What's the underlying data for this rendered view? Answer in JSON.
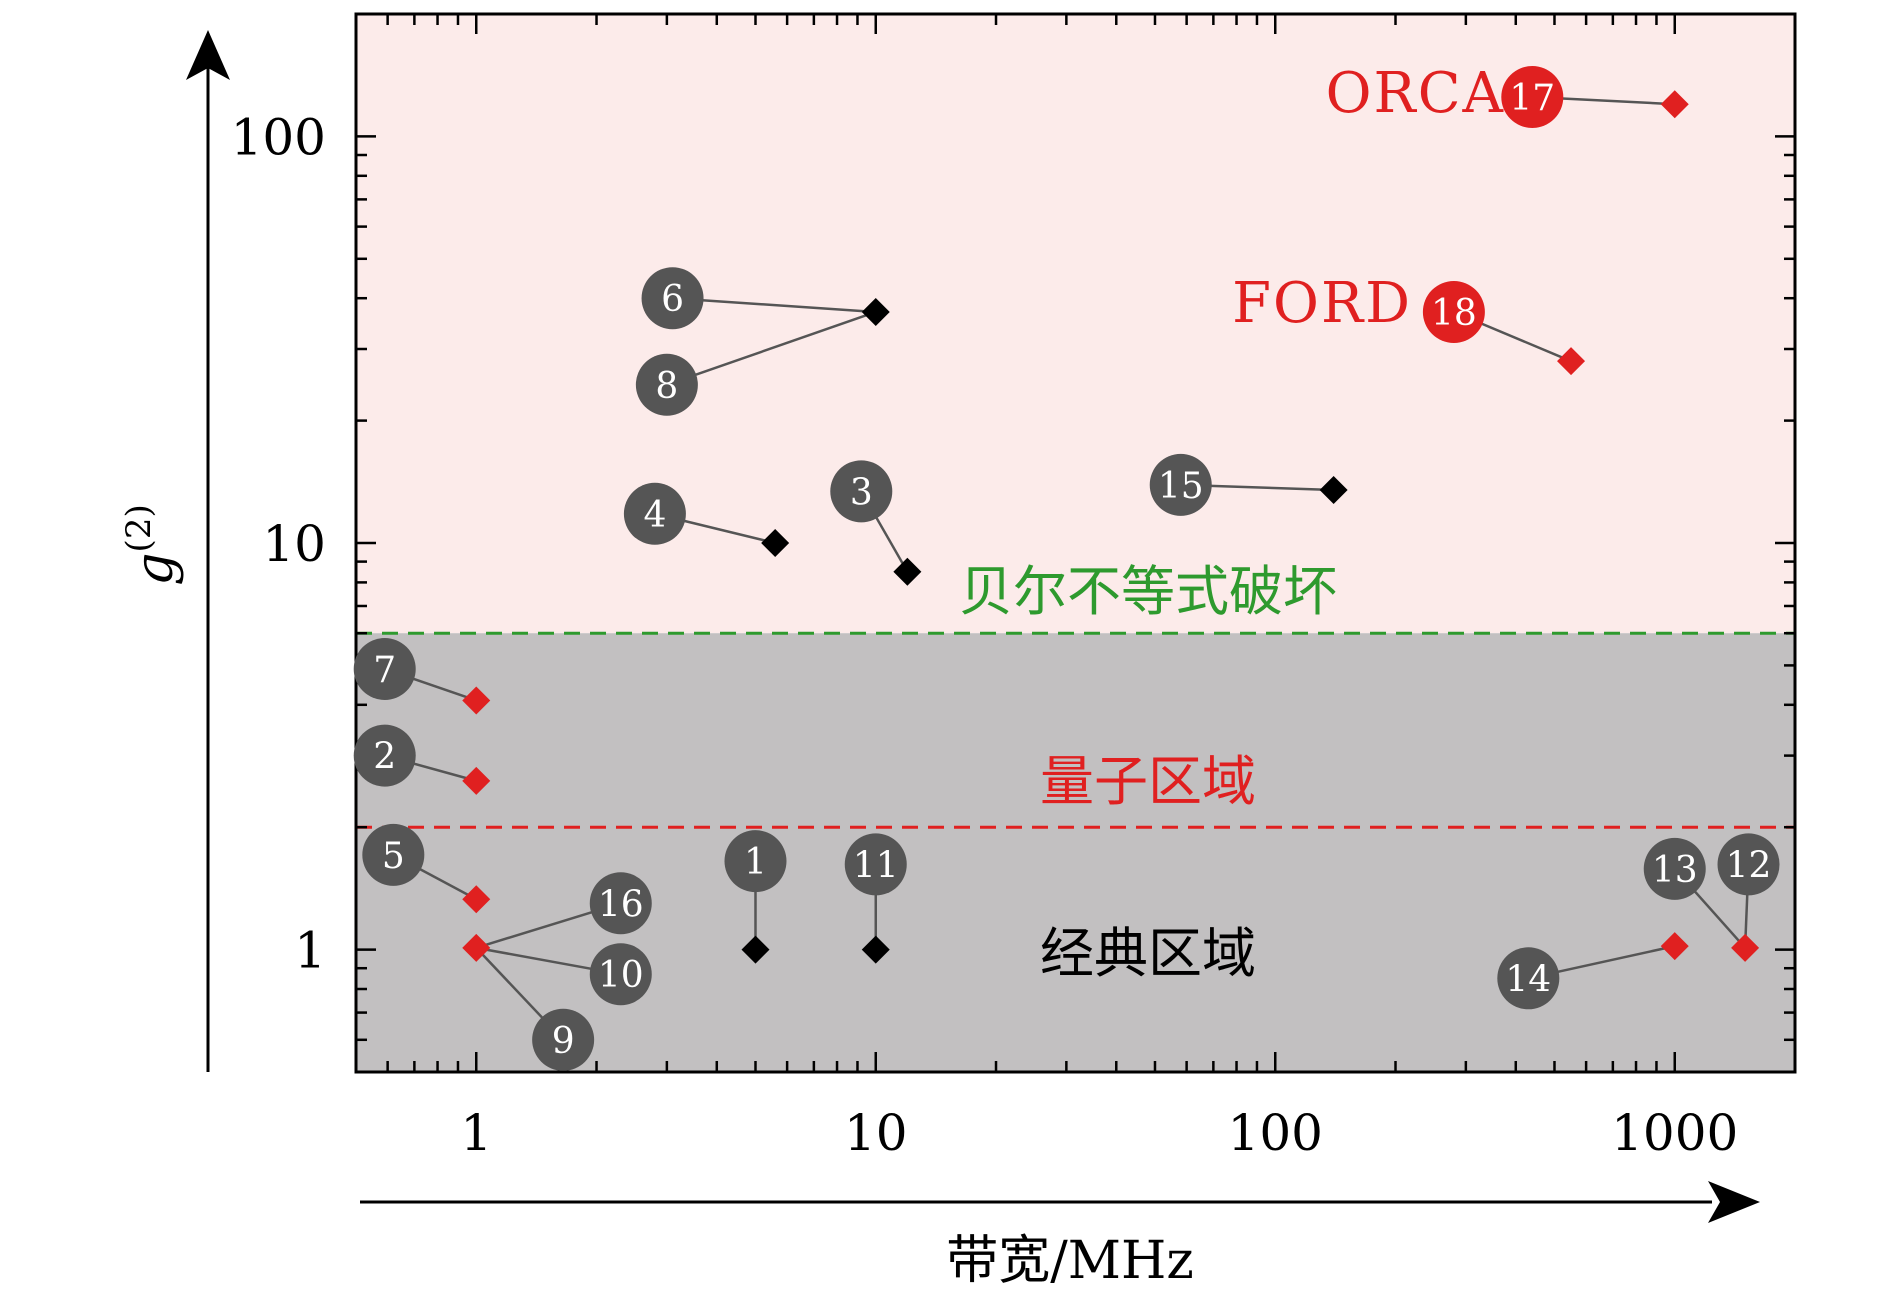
{
  "chart_data": {
    "type": "scatter",
    "xscale": "log",
    "yscale": "log",
    "xlim": [
      0.5,
      2000
    ],
    "ylim": [
      0.5,
      200
    ],
    "xlabel": "带宽/MHz",
    "ylabel_base": "g",
    "ylabel_sup": "(2)",
    "xticks": [
      {
        "value": 1,
        "label": "1"
      },
      {
        "value": 10,
        "label": "10"
      },
      {
        "value": 100,
        "label": "100"
      },
      {
        "value": 1000,
        "label": "1000"
      }
    ],
    "yticks": [
      {
        "value": 1,
        "label": "1"
      },
      {
        "value": 10,
        "label": "10"
      },
      {
        "value": 100,
        "label": "100"
      }
    ],
    "thresholds": [
      {
        "name": "bell",
        "value": 6,
        "color": "#2e9a2e",
        "label": "贝尔不等式破坏"
      },
      {
        "name": "quantum",
        "value": 2,
        "color": "#e02020",
        "label": "量子区域"
      }
    ],
    "regions": [
      {
        "name": "classical",
        "label": "经典区域",
        "color": "#000000"
      }
    ],
    "colors": {
      "upper_band": "#fcebea",
      "lower_band": "#c2c0c1",
      "black_marker": "#000000",
      "red_marker": "#e02020",
      "badge_gray": "#555555",
      "badge_red": "#e02020",
      "leader": "#555555"
    },
    "points": [
      {
        "id": "1",
        "x": 5,
        "y": 1.0,
        "color": "black",
        "badge_x": 5,
        "badge_y": 1.65
      },
      {
        "id": "2",
        "x": 1,
        "y": 2.6,
        "color": "red",
        "badge_x": 0.59,
        "badge_y": 3.0
      },
      {
        "id": "3",
        "x": 12,
        "y": 8.5,
        "color": "black",
        "badge_x": 9.2,
        "badge_y": 13.4
      },
      {
        "id": "4",
        "x": 5.6,
        "y": 10.0,
        "color": "black",
        "badge_x": 2.8,
        "badge_y": 11.8
      },
      {
        "id": "5",
        "x": 1,
        "y": 1.33,
        "color": "red",
        "badge_x": 0.62,
        "badge_y": 1.71
      },
      {
        "id": "6",
        "x": 10,
        "y": 37,
        "color": "black",
        "badge_x": 3.1,
        "badge_y": 40
      },
      {
        "id": "7",
        "x": 1,
        "y": 4.1,
        "color": "red",
        "badge_x": 0.59,
        "badge_y": 4.9
      },
      {
        "id": "8",
        "x": 10,
        "y": 37,
        "color": "black",
        "badge_x": 3.0,
        "badge_y": 24.5
      },
      {
        "id": "9",
        "x": 1,
        "y": 1.01,
        "color": "red",
        "badge_x": 1.65,
        "badge_y": 0.6
      },
      {
        "id": "10",
        "x": 1,
        "y": 1.01,
        "color": "red",
        "badge_x": 2.3,
        "badge_y": 0.87
      },
      {
        "id": "11",
        "x": 10,
        "y": 1.0,
        "color": "black",
        "badge_x": 10,
        "badge_y": 1.62
      },
      {
        "id": "12",
        "x": 1500,
        "y": 1.01,
        "color": "red",
        "badge_x": 1530,
        "badge_y": 1.62
      },
      {
        "id": "13",
        "x": 1500,
        "y": 1.01,
        "color": "red",
        "badge_x": 1000,
        "badge_y": 1.58
      },
      {
        "id": "14",
        "x": 1000,
        "y": 1.02,
        "color": "red",
        "badge_x": 430,
        "badge_y": 0.85
      },
      {
        "id": "15",
        "x": 140,
        "y": 13.5,
        "color": "black",
        "badge_x": 58,
        "badge_y": 13.9
      },
      {
        "id": "16",
        "x": 1,
        "y": 1.01,
        "color": "red",
        "badge_x": 2.3,
        "badge_y": 1.3
      },
      {
        "id": "17",
        "x": 1000,
        "y": 120,
        "color": "red",
        "badge_x": 440,
        "badge_y": 125,
        "badge_style": "red",
        "name": "ORCA"
      },
      {
        "id": "18",
        "x": 550,
        "y": 28,
        "color": "red",
        "badge_x": 280,
        "badge_y": 37,
        "badge_style": "red",
        "name": "FORD"
      }
    ]
  }
}
